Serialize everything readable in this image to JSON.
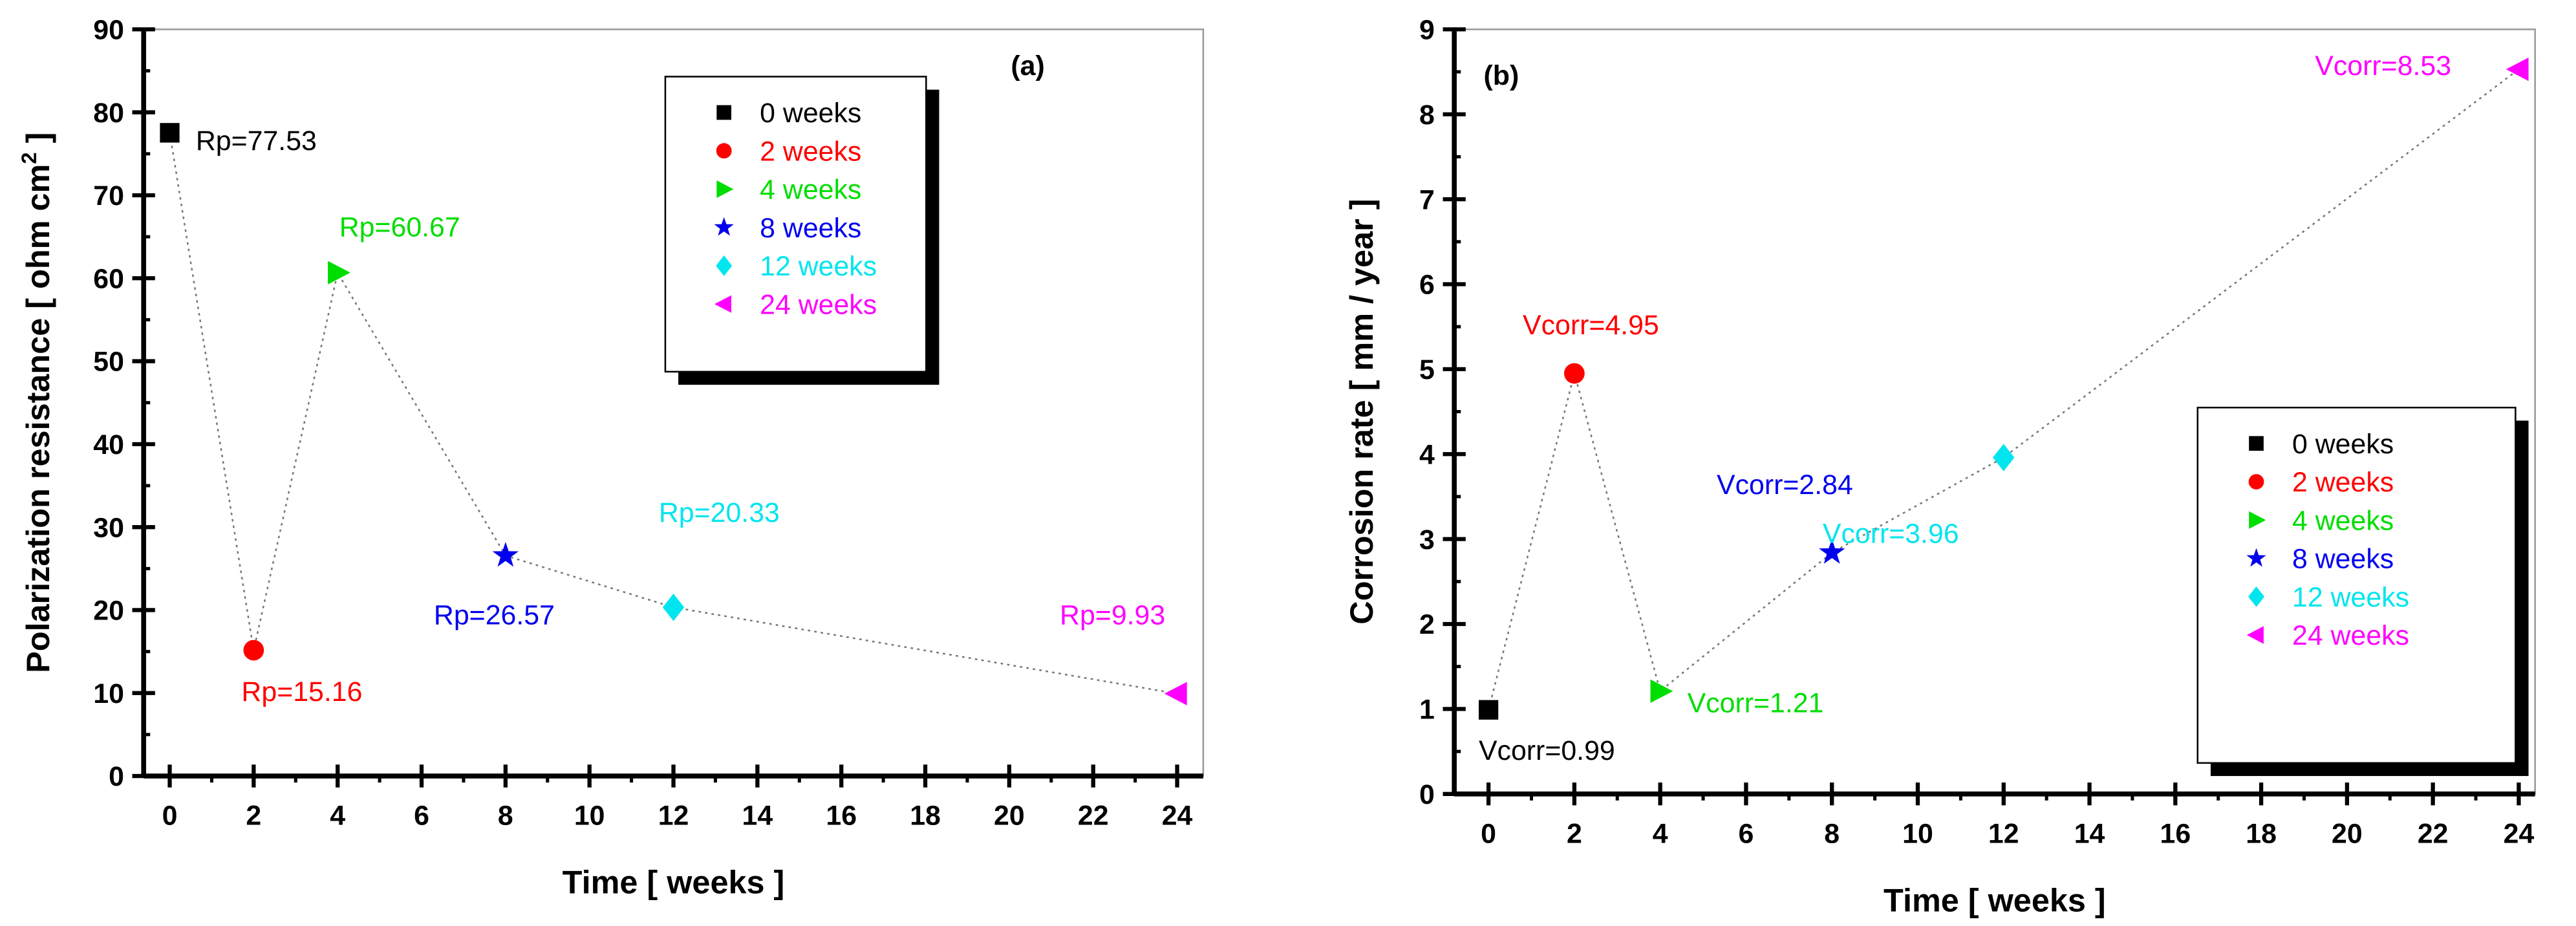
{
  "chart_data": [
    {
      "type": "scatter",
      "panel_label": "(a)",
      "xlabel": "Time [ weeks ]",
      "ylabel": "Polarization resistance [ ohm cm",
      "ylabel_sup": "2",
      "ylabel_end": " ]",
      "xlim": [
        0,
        24
      ],
      "ylim": [
        0,
        90
      ],
      "xticks": [
        "0",
        "2",
        "4",
        "6",
        "8",
        "10",
        "12",
        "14",
        "16",
        "18",
        "20",
        "22",
        "24"
      ],
      "yticks": [
        "0",
        "10",
        "20",
        "30",
        "40",
        "50",
        "60",
        "70",
        "80",
        "90"
      ],
      "legend_position": "top-right",
      "grid": false,
      "series": [
        {
          "name": "0 weeks",
          "x": 0,
          "y": 77.53,
          "label": "Rp=77.53",
          "color": "#000000",
          "marker": "square"
        },
        {
          "name": "2 weeks",
          "x": 2,
          "y": 15.16,
          "label": "Rp=15.16",
          "color": "#ff0000",
          "marker": "circle"
        },
        {
          "name": "4 weeks",
          "x": 4,
          "y": 60.67,
          "label": "Rp=60.67",
          "color": "#00dd00",
          "marker": "triangle-right"
        },
        {
          "name": "8 weeks",
          "x": 8,
          "y": 26.57,
          "label": "Rp=26.57",
          "color": "#0000ee",
          "marker": "star"
        },
        {
          "name": "12 weeks",
          "x": 12,
          "y": 20.33,
          "label": "Rp=20.33",
          "color": "#00e5ee",
          "marker": "diamond"
        },
        {
          "name": "24 weeks",
          "x": 24,
          "y": 9.93,
          "label": "Rp=9.93",
          "color": "#ff00ff",
          "marker": "triangle-left"
        }
      ]
    },
    {
      "type": "scatter",
      "panel_label": "(b)",
      "xlabel": "Time [ weeks ]",
      "ylabel": "Corrosion rate [ mm / year ]",
      "xlim": [
        0,
        24
      ],
      "ylim": [
        0,
        9
      ],
      "xticks": [
        "0",
        "2",
        "4",
        "6",
        "8",
        "10",
        "12",
        "14",
        "16",
        "18",
        "20",
        "22",
        "24"
      ],
      "yticks": [
        "0",
        "1",
        "2",
        "3",
        "4",
        "5",
        "6",
        "7",
        "8",
        "9"
      ],
      "legend_position": "bottom-right",
      "grid": false,
      "series": [
        {
          "name": "0 weeks",
          "x": 0,
          "y": 0.99,
          "label": "Vcorr=0.99",
          "color": "#000000",
          "marker": "square"
        },
        {
          "name": "2 weeks",
          "x": 2,
          "y": 4.95,
          "label": "Vcorr=4.95",
          "color": "#ff0000",
          "marker": "circle"
        },
        {
          "name": "4 weeks",
          "x": 4,
          "y": 1.21,
          "label": "Vcorr=1.21",
          "color": "#00dd00",
          "marker": "triangle-right"
        },
        {
          "name": "8 weeks",
          "x": 8,
          "y": 2.84,
          "label": "Vcorr=2.84",
          "color": "#0000ee",
          "marker": "star"
        },
        {
          "name": "12 weeks",
          "x": 12,
          "y": 3.96,
          "label": "Vcorr=3.96",
          "color": "#00e5ee",
          "marker": "diamond"
        },
        {
          "name": "24 weeks",
          "x": 24,
          "y": 8.53,
          "label": "Vcorr=8.53",
          "color": "#ff00ff",
          "marker": "triangle-left"
        }
      ]
    }
  ]
}
